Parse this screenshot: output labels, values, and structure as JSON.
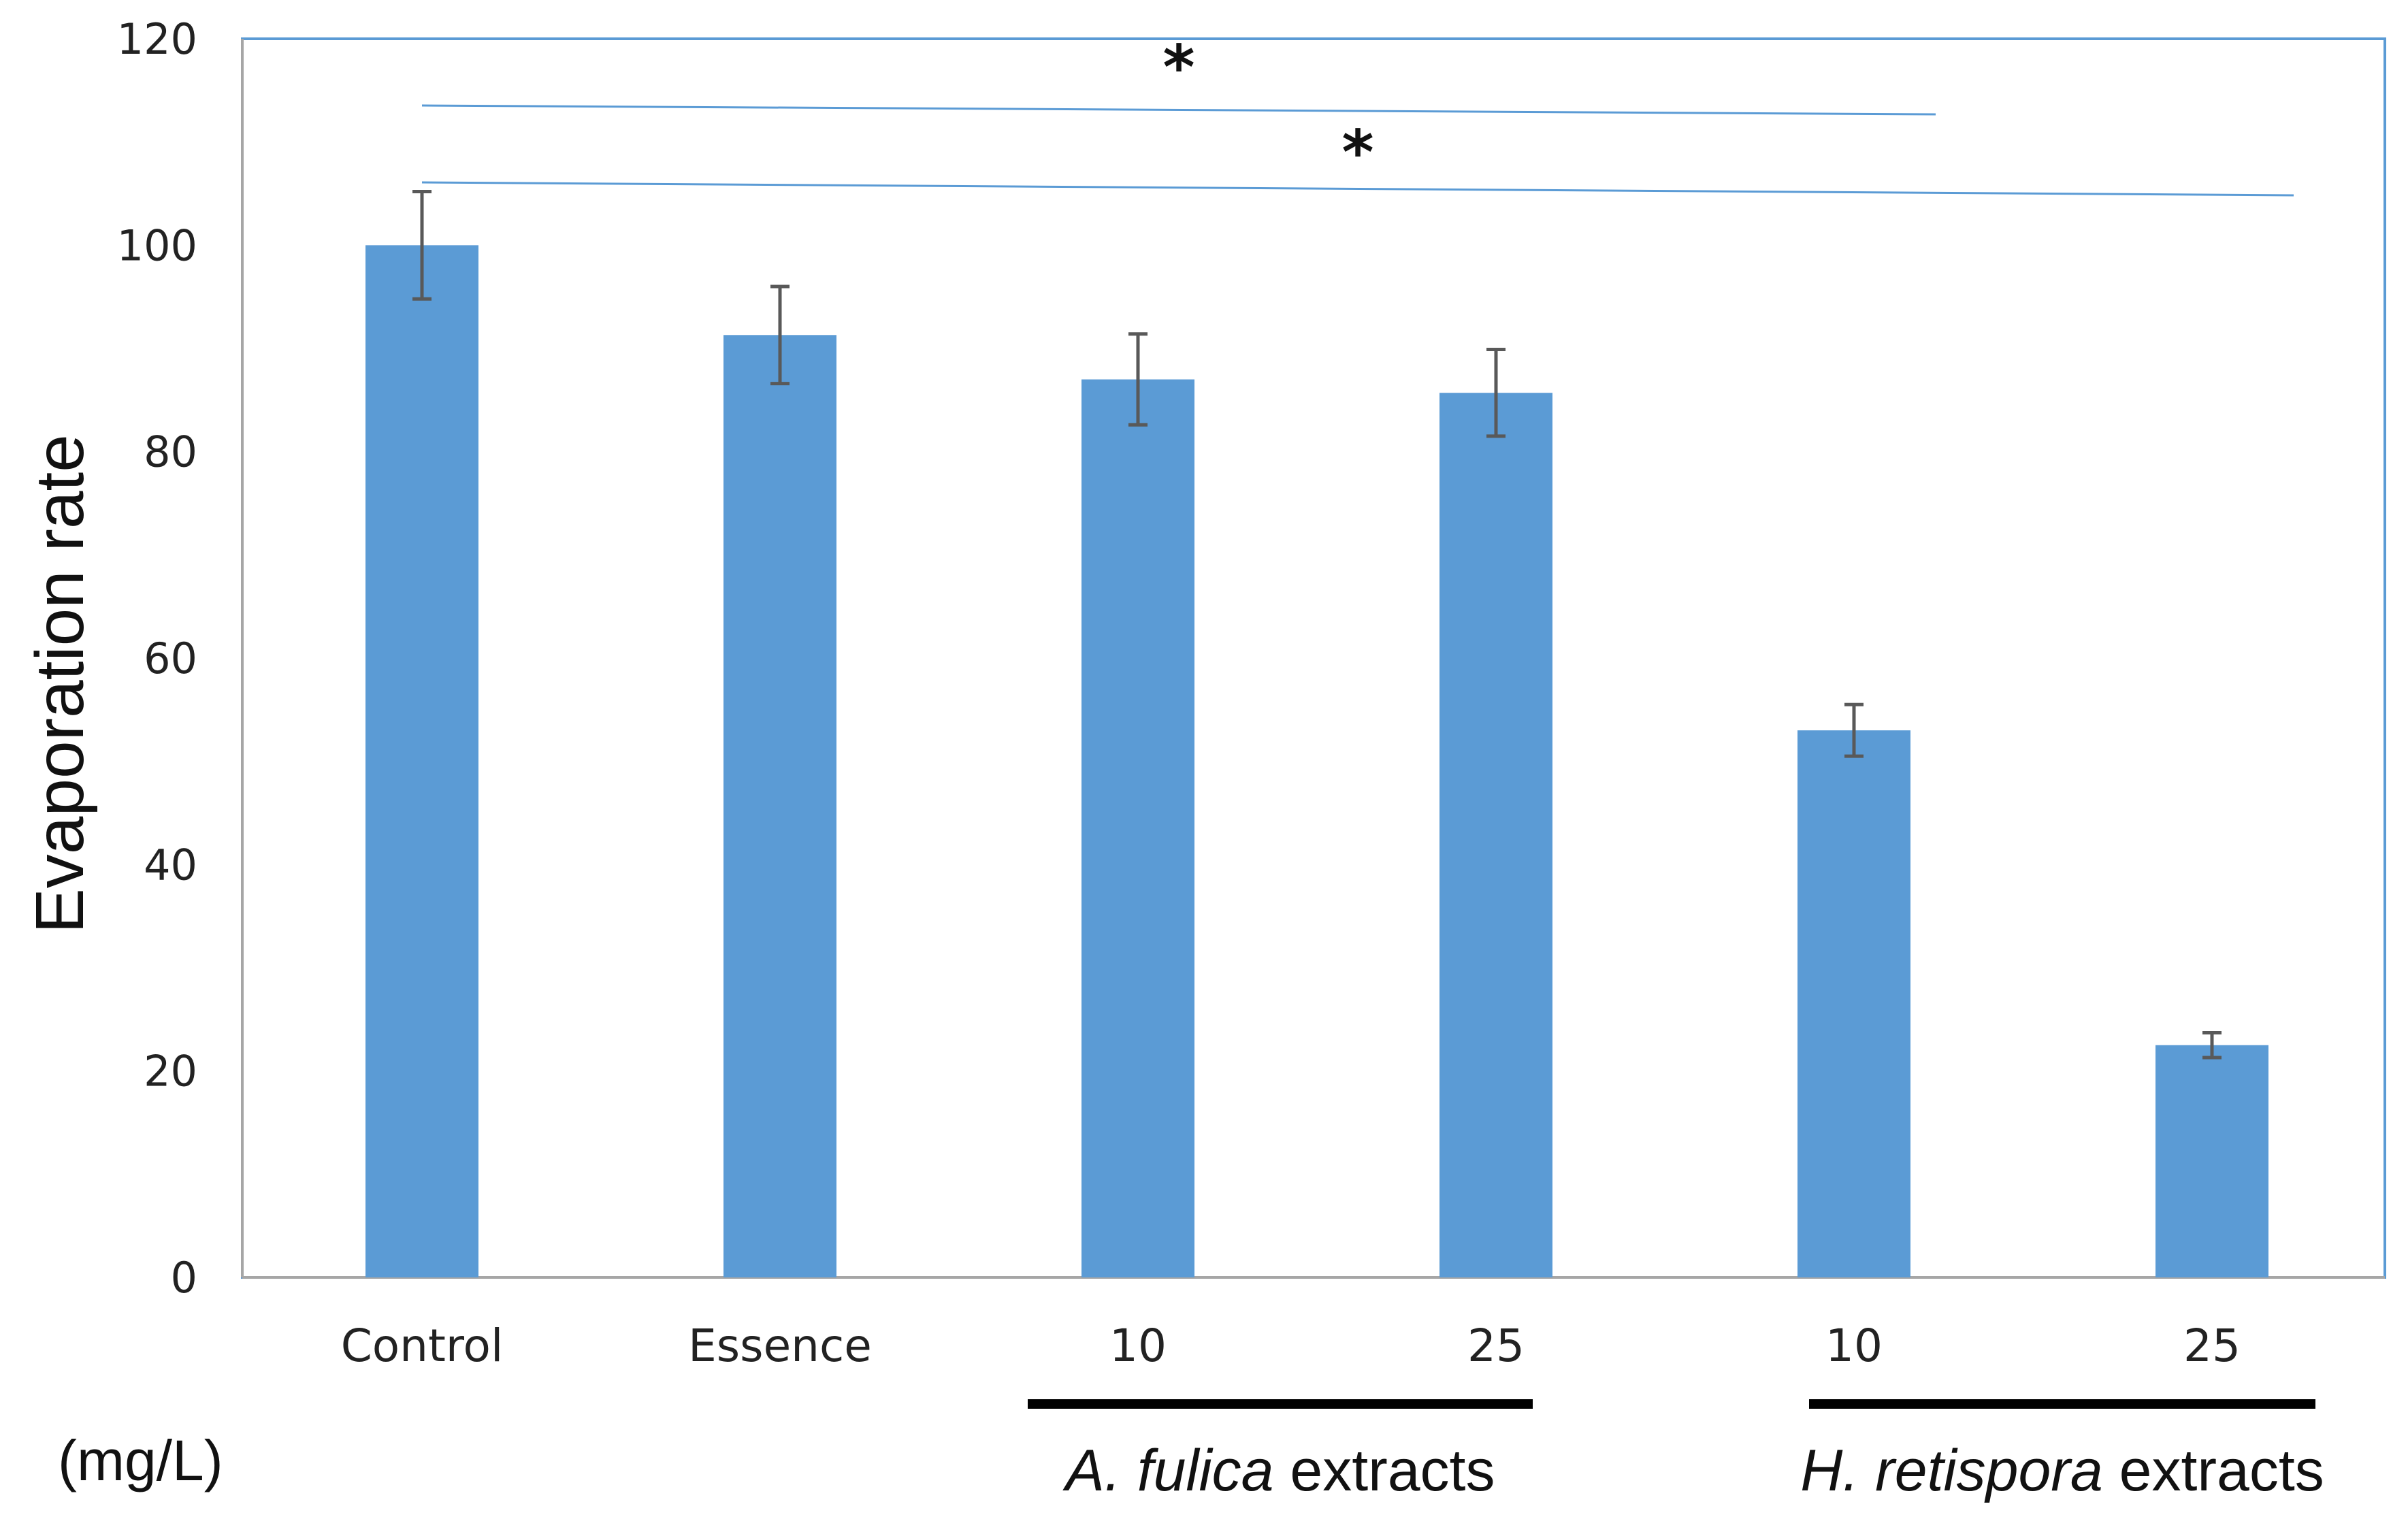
{
  "colors": {
    "bar": "#5b9bd5",
    "frame": "#5b9bd5",
    "axis": "#a6a6a6",
    "error_bar": "#595959",
    "sig_line": "#5b9bd5",
    "group_bar": "#000000"
  },
  "chart_data": {
    "type": "bar",
    "title": "",
    "xlabel": "",
    "ylabel": "Evaporation rate",
    "ylim": [
      0,
      120
    ],
    "yticks": [
      "0",
      "20",
      "40",
      "60",
      "80",
      "100",
      "120"
    ],
    "categories": [
      "Control",
      "Essence",
      "10",
      "25",
      "10",
      "25"
    ],
    "values": [
      100,
      91.3,
      87,
      85.7,
      53,
      22.5
    ],
    "errors": [
      5.2,
      4.7,
      4.4,
      4.2,
      2.5,
      1.2
    ],
    "unit_label": "(mg/L)",
    "groups": [
      {
        "name_italic": "A. fulica",
        "name_rest": " extracts",
        "categories": [
          2,
          3
        ]
      },
      {
        "name_italic": "H. retispora",
        "name_rest": " extracts",
        "categories": [
          4,
          5
        ]
      }
    ],
    "significance": [
      {
        "label": "*",
        "from": 0,
        "to": 4
      },
      {
        "label": "*",
        "from": 0,
        "to": 5
      }
    ],
    "grid": false,
    "legend": "none"
  }
}
